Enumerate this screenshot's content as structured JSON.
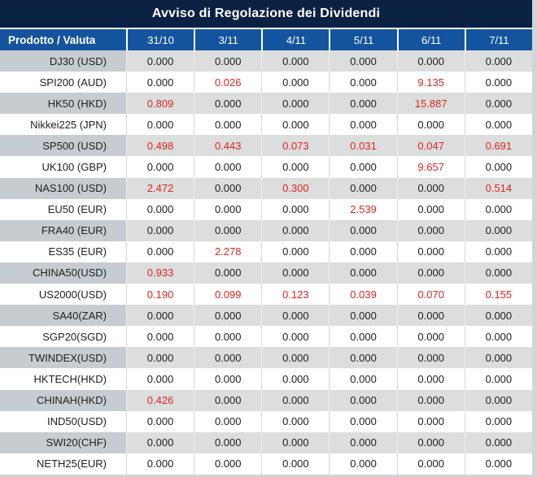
{
  "title": "Avviso di Regolazione dei Dividendi",
  "table": {
    "product_header": "Prodotto / Valuta",
    "date_headers": [
      "31/10",
      "3/11",
      "4/11",
      "5/11",
      "6/11",
      "7/11"
    ],
    "rows": [
      {
        "product": "DJ30 (USD)",
        "values": [
          "0.000",
          "0.000",
          "0.000",
          "0.000",
          "0.000",
          "0.000"
        ],
        "red_flags": [
          0,
          0,
          0,
          0,
          0,
          0
        ]
      },
      {
        "product": "SPI200 (AUD)",
        "values": [
          "0.000",
          "0.026",
          "0.000",
          "0.000",
          "9.135",
          "0.000"
        ],
        "red_flags": [
          0,
          1,
          0,
          0,
          1,
          0
        ]
      },
      {
        "product": "HK50 (HKD)",
        "values": [
          "0.809",
          "0.000",
          "0.000",
          "0.000",
          "15.887",
          "0.000"
        ],
        "red_flags": [
          1,
          0,
          0,
          0,
          1,
          0
        ]
      },
      {
        "product": "Nikkei225 (JPN)",
        "values": [
          "0.000",
          "0.000",
          "0.000",
          "0.000",
          "0.000",
          "0.000"
        ],
        "red_flags": [
          0,
          0,
          0,
          0,
          0,
          0
        ]
      },
      {
        "product": "SP500 (USD)",
        "values": [
          "0.498",
          "0.443",
          "0.073",
          "0.031",
          "0.047",
          "0.691"
        ],
        "red_flags": [
          1,
          1,
          1,
          1,
          1,
          1
        ]
      },
      {
        "product": "UK100 (GBP)",
        "values": [
          "0.000",
          "0.000",
          "0.000",
          "0.000",
          "9.657",
          "0.000"
        ],
        "red_flags": [
          0,
          0,
          0,
          0,
          1,
          0
        ]
      },
      {
        "product": "NAS100 (USD)",
        "values": [
          "2.472",
          "0.000",
          "0.300",
          "0.000",
          "0.000",
          "0.514"
        ],
        "red_flags": [
          1,
          0,
          1,
          0,
          0,
          1
        ]
      },
      {
        "product": "EU50 (EUR)",
        "values": [
          "0.000",
          "0.000",
          "0.000",
          "2.539",
          "0.000",
          "0.000"
        ],
        "red_flags": [
          0,
          0,
          0,
          1,
          0,
          0
        ]
      },
      {
        "product": "FRA40 (EUR)",
        "values": [
          "0.000",
          "0.000",
          "0.000",
          "0.000",
          "0.000",
          "0.000"
        ],
        "red_flags": [
          0,
          0,
          0,
          0,
          0,
          0
        ]
      },
      {
        "product": "ES35 (EUR)",
        "values": [
          "0.000",
          "2.278",
          "0.000",
          "0.000",
          "0.000",
          "0.000"
        ],
        "red_flags": [
          0,
          1,
          0,
          0,
          0,
          0
        ]
      },
      {
        "product": "CHINA50(USD)",
        "values": [
          "0.933",
          "0.000",
          "0.000",
          "0.000",
          "0.000",
          "0.000"
        ],
        "red_flags": [
          1,
          0,
          0,
          0,
          0,
          0
        ]
      },
      {
        "product": "US2000(USD)",
        "values": [
          "0.190",
          "0.099",
          "0.123",
          "0.039",
          "0.070",
          "0.155"
        ],
        "red_flags": [
          1,
          1,
          1,
          1,
          1,
          1
        ]
      },
      {
        "product": "SA40(ZAR)",
        "values": [
          "0.000",
          "0.000",
          "0.000",
          "0.000",
          "0.000",
          "0.000"
        ],
        "red_flags": [
          0,
          0,
          0,
          0,
          0,
          0
        ]
      },
      {
        "product": "SGP20(SGD)",
        "values": [
          "0.000",
          "0.000",
          "0.000",
          "0.000",
          "0.000",
          "0.000"
        ],
        "red_flags": [
          0,
          0,
          0,
          0,
          0,
          0
        ]
      },
      {
        "product": "TWINDEX(USD)",
        "values": [
          "0.000",
          "0.000",
          "0.000",
          "0.000",
          "0.000",
          "0.000"
        ],
        "red_flags": [
          0,
          0,
          0,
          0,
          0,
          0
        ]
      },
      {
        "product": "HKTECH(HKD)",
        "values": [
          "0.000",
          "0.000",
          "0.000",
          "0.000",
          "0.000",
          "0.000"
        ],
        "red_flags": [
          0,
          0,
          0,
          0,
          0,
          0
        ]
      },
      {
        "product": "CHINAH(HKD)",
        "values": [
          "0.426",
          "0.000",
          "0.000",
          "0.000",
          "0.000",
          "0.000"
        ],
        "red_flags": [
          1,
          0,
          0,
          0,
          0,
          0
        ]
      },
      {
        "product": "IND50(USD)",
        "values": [
          "0.000",
          "0.000",
          "0.000",
          "0.000",
          "0.000",
          "0.000"
        ],
        "red_flags": [
          0,
          0,
          0,
          0,
          0,
          0
        ]
      },
      {
        "product": "SWI20(CHF)",
        "values": [
          "0.000",
          "0.000",
          "0.000",
          "0.000",
          "0.000",
          "0.000"
        ],
        "red_flags": [
          0,
          0,
          0,
          0,
          0,
          0
        ]
      },
      {
        "product": "NETH25(EUR)",
        "values": [
          "0.000",
          "0.000",
          "0.000",
          "0.000",
          "0.000",
          "0.000"
        ],
        "red_flags": [
          0,
          0,
          0,
          0,
          0,
          0
        ]
      }
    ]
  },
  "colors": {
    "navy": "#0a2143",
    "header_blue": "#14549e",
    "red": "#e1261d",
    "text": "#212121",
    "gray_label": "#c7ccd0",
    "gray_value": "#dcdddd",
    "white_sep": "#d9d9d9",
    "gray_sep": "#eef0f0",
    "gutter": "#d2d5d8"
  }
}
